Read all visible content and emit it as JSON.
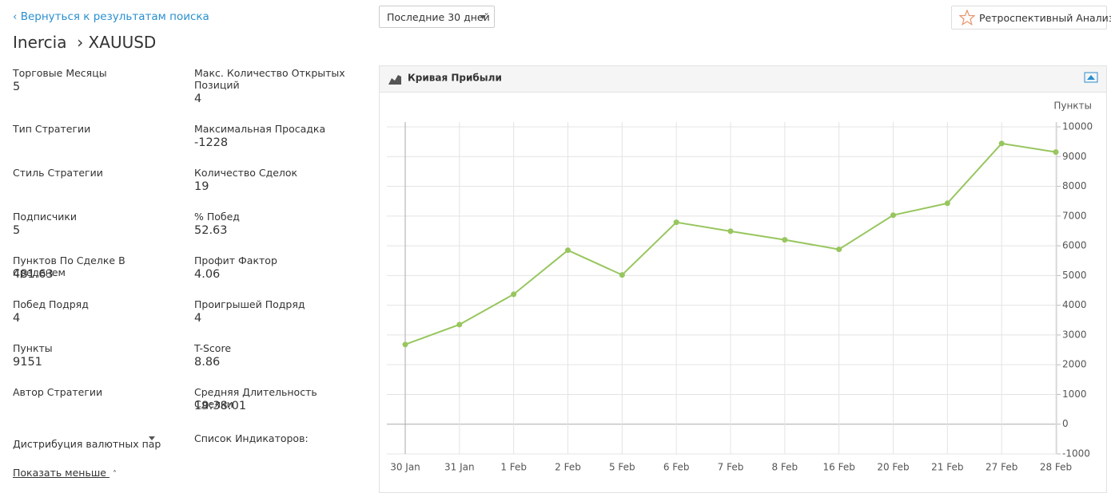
{
  "header": {
    "back_link": "‹ Вернуться к результатам поиска",
    "title": "Inercia",
    "symbol": "› XAUUSD",
    "period": "Последние 30 дней",
    "backtest": "Ретроспективный Анализ"
  },
  "stats": {
    "left": [
      {
        "label": "Торговые Месяцы",
        "value": "5"
      },
      {
        "label": "Тип Стратегии"
      },
      {
        "label": "Стиль Стратегии"
      },
      {
        "label": "Подписчики",
        "value": "5"
      },
      {
        "label": "Пунктов По Сделке В Среденем",
        "value": "481.63"
      },
      {
        "label": "Побед Подряд",
        "value": "4"
      },
      {
        "label": "Пункты",
        "value": "9151"
      },
      {
        "label": "Автор Стратегии"
      },
      {
        "label": "Дистрибуция валютных пар"
      }
    ],
    "right": [
      {
        "label": "Макс. Количество Открытых Позиций",
        "value": "4"
      },
      {
        "label": "Максимальная Просадка",
        "value": "-1228"
      },
      {
        "label": "Количество Сделок",
        "value": "19"
      },
      {
        "label": "% Побед",
        "value": "52.63"
      },
      {
        "label": "Профит Фактор",
        "value": "4.06"
      },
      {
        "label": "Проигрышей Подряд",
        "value": "4"
      },
      {
        "label": "T-Score",
        "value": "8.86"
      },
      {
        "label": "Средняя Длительность Сделки",
        "value": "19:38:01"
      },
      {
        "label": "Список Индикаторов:"
      }
    ]
  },
  "show_less": "Показать меньше",
  "chart_data": {
    "type": "line",
    "title": "Кривая Прибыли",
    "y_label": "Пункты",
    "categories": [
      "30 Jan",
      "31 Jan",
      "1 Feb",
      "2 Feb",
      "5 Feb",
      "6 Feb",
      "7 Feb",
      "8 Feb",
      "16 Feb",
      "20 Feb",
      "21 Feb",
      "27 Feb",
      "28 Feb"
    ],
    "values": [
      2680,
      3350,
      4370,
      5850,
      5020,
      6790,
      6490,
      6200,
      5880,
      7030,
      7430,
      9440,
      9151
    ],
    "color": "#97c65e",
    "ylim": [
      -1000,
      10000
    ],
    "yticks": [
      -1000,
      0,
      1000,
      2000,
      3000,
      4000,
      5000,
      6000,
      7000,
      8000,
      9000,
      10000
    ],
    "grid": true
  }
}
